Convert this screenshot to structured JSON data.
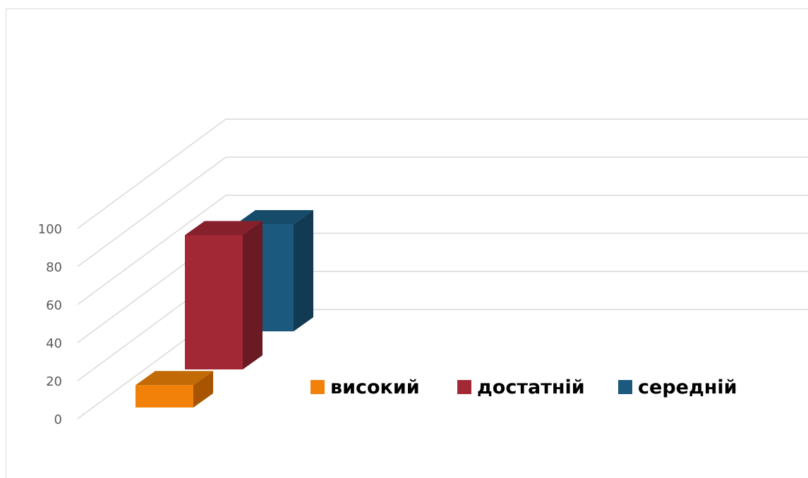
{
  "chart_data": {
    "type": "bar",
    "three_d": true,
    "categories": [
      ""
    ],
    "series": [
      {
        "name": "високий",
        "values": [
          14
        ],
        "color": "#F28109",
        "side": "#A85400",
        "top": "#C26A06"
      },
      {
        "name": "достатній",
        "values": [
          84
        ],
        "color": "#A32835",
        "side": "#6A1A22",
        "top": "#86202B"
      },
      {
        "name": "середній",
        "values": [
          67
        ],
        "color": "#1B5A7E",
        "side": "#123A52",
        "top": "#164B69"
      }
    ],
    "ylim": [
      0,
      100
    ],
    "yticks": [
      "0",
      "20",
      "40",
      "60",
      "80",
      "100"
    ],
    "grid": true,
    "legend": "right"
  }
}
